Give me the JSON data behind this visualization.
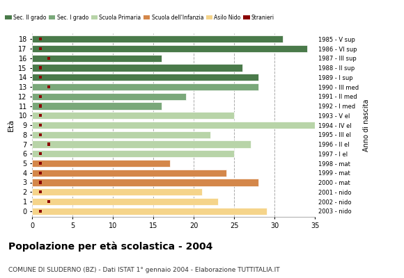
{
  "ages": [
    18,
    17,
    16,
    15,
    14,
    13,
    12,
    11,
    10,
    9,
    8,
    7,
    6,
    5,
    4,
    3,
    2,
    1,
    0
  ],
  "anno_di_nascita": [
    "1985 - V sup",
    "1986 - VI sup",
    "1987 - III sup",
    "1988 - II sup",
    "1989 - I sup",
    "1990 - III med",
    "1991 - II med",
    "1992 - I med",
    "1993 - V el",
    "1994 - IV el",
    "1995 - III el",
    "1996 - II el",
    "1997 - I el",
    "1998 - mat",
    "1999 - mat",
    "2000 - mat",
    "2001 - nido",
    "2002 - nido",
    "2003 - nido"
  ],
  "values": [
    31,
    34,
    16,
    26,
    28,
    28,
    19,
    16,
    25,
    35,
    22,
    27,
    25,
    17,
    24,
    28,
    21,
    23,
    29
  ],
  "stranieri": [
    1,
    1,
    2,
    1,
    1,
    2,
    1,
    1,
    1,
    1,
    1,
    2,
    1,
    1,
    1,
    1,
    1,
    2,
    1
  ],
  "categories": {
    "sec2": [
      18,
      17,
      16,
      15,
      14
    ],
    "sec1": [
      13,
      12,
      11
    ],
    "primaria": [
      10,
      9,
      8,
      7,
      6
    ],
    "infanzia": [
      5,
      4,
      3
    ],
    "nido": [
      2,
      1,
      0
    ]
  },
  "colors": {
    "sec2": "#4a7a4a",
    "sec1": "#7aa87a",
    "primaria": "#b8d4a8",
    "infanzia": "#d4874a",
    "nido": "#f5d48a",
    "stranieri": "#8b0000"
  },
  "legend_labels": [
    "Sec. II grado",
    "Sec. I grado",
    "Scuola Primaria",
    "Scuola dell'Infanzia",
    "Asilo Nido",
    "Stranieri"
  ],
  "title": "Popolazione per età scolastica - 2004",
  "subtitle": "COMUNE DI SLUDERNO (BZ) - Dati ISTAT 1° gennaio 2004 - Elaborazione TUTTITALIA.IT",
  "ylabel": "Età",
  "right_label": "Anno di nascita",
  "xlim": [
    0,
    35
  ],
  "xticks": [
    0,
    5,
    10,
    15,
    20,
    25,
    30,
    35
  ]
}
